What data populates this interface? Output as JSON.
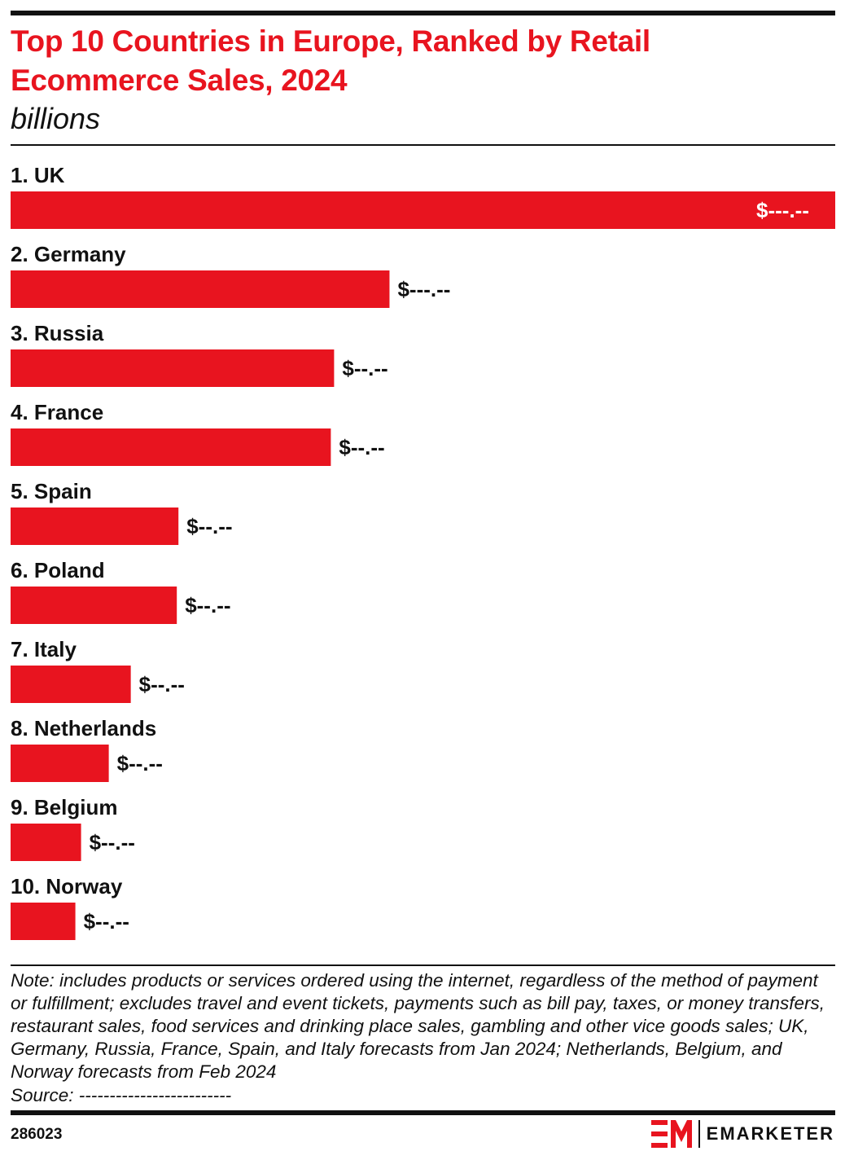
{
  "header": {
    "title": "Top 10 Countries in Europe, Ranked by Retail Ecommerce Sales, 2024",
    "subtitle": "billions"
  },
  "chart_data": {
    "type": "bar",
    "orientation": "horizontal",
    "categories": [
      "1. UK",
      "2. Germany",
      "3. Russia",
      "4. France",
      "5. Spain",
      "6. Poland",
      "7. Italy",
      "8. Netherlands",
      "9. Belgium",
      "10. Norway"
    ],
    "values": [
      202.4,
      93.0,
      79.4,
      78.6,
      41.2,
      40.8,
      29.5,
      24.1,
      17.3,
      15.9
    ],
    "value_labels": [
      "$---.--",
      "$---.--",
      "$--.--",
      "$--.--",
      "$--.--",
      "$--.--",
      "$--.--",
      "$--.--",
      "$--.--",
      "$--.--"
    ],
    "xlim": [
      0,
      202.4
    ],
    "bar_color": "#e8141f",
    "grid": false,
    "legend": "none"
  },
  "footer": {
    "note": "Note: includes products or services ordered using the internet, regardless of the method of payment or fulfillment; excludes travel and event tickets, payments such as bill pay, taxes, or money transfers, restaurant sales, food services and drinking place sales, gambling and other vice goods sales; UK, Germany, Russia, France, Spain, and Italy forecasts from Jan 2024; Netherlands, Belgium, and Norway forecasts from Feb 2024",
    "source": "Source: -------------------------",
    "chart_id": "286023",
    "brand_name": "EMARKETER",
    "brand_icon": "em-logo-icon",
    "accent_color": "#e8141f"
  }
}
